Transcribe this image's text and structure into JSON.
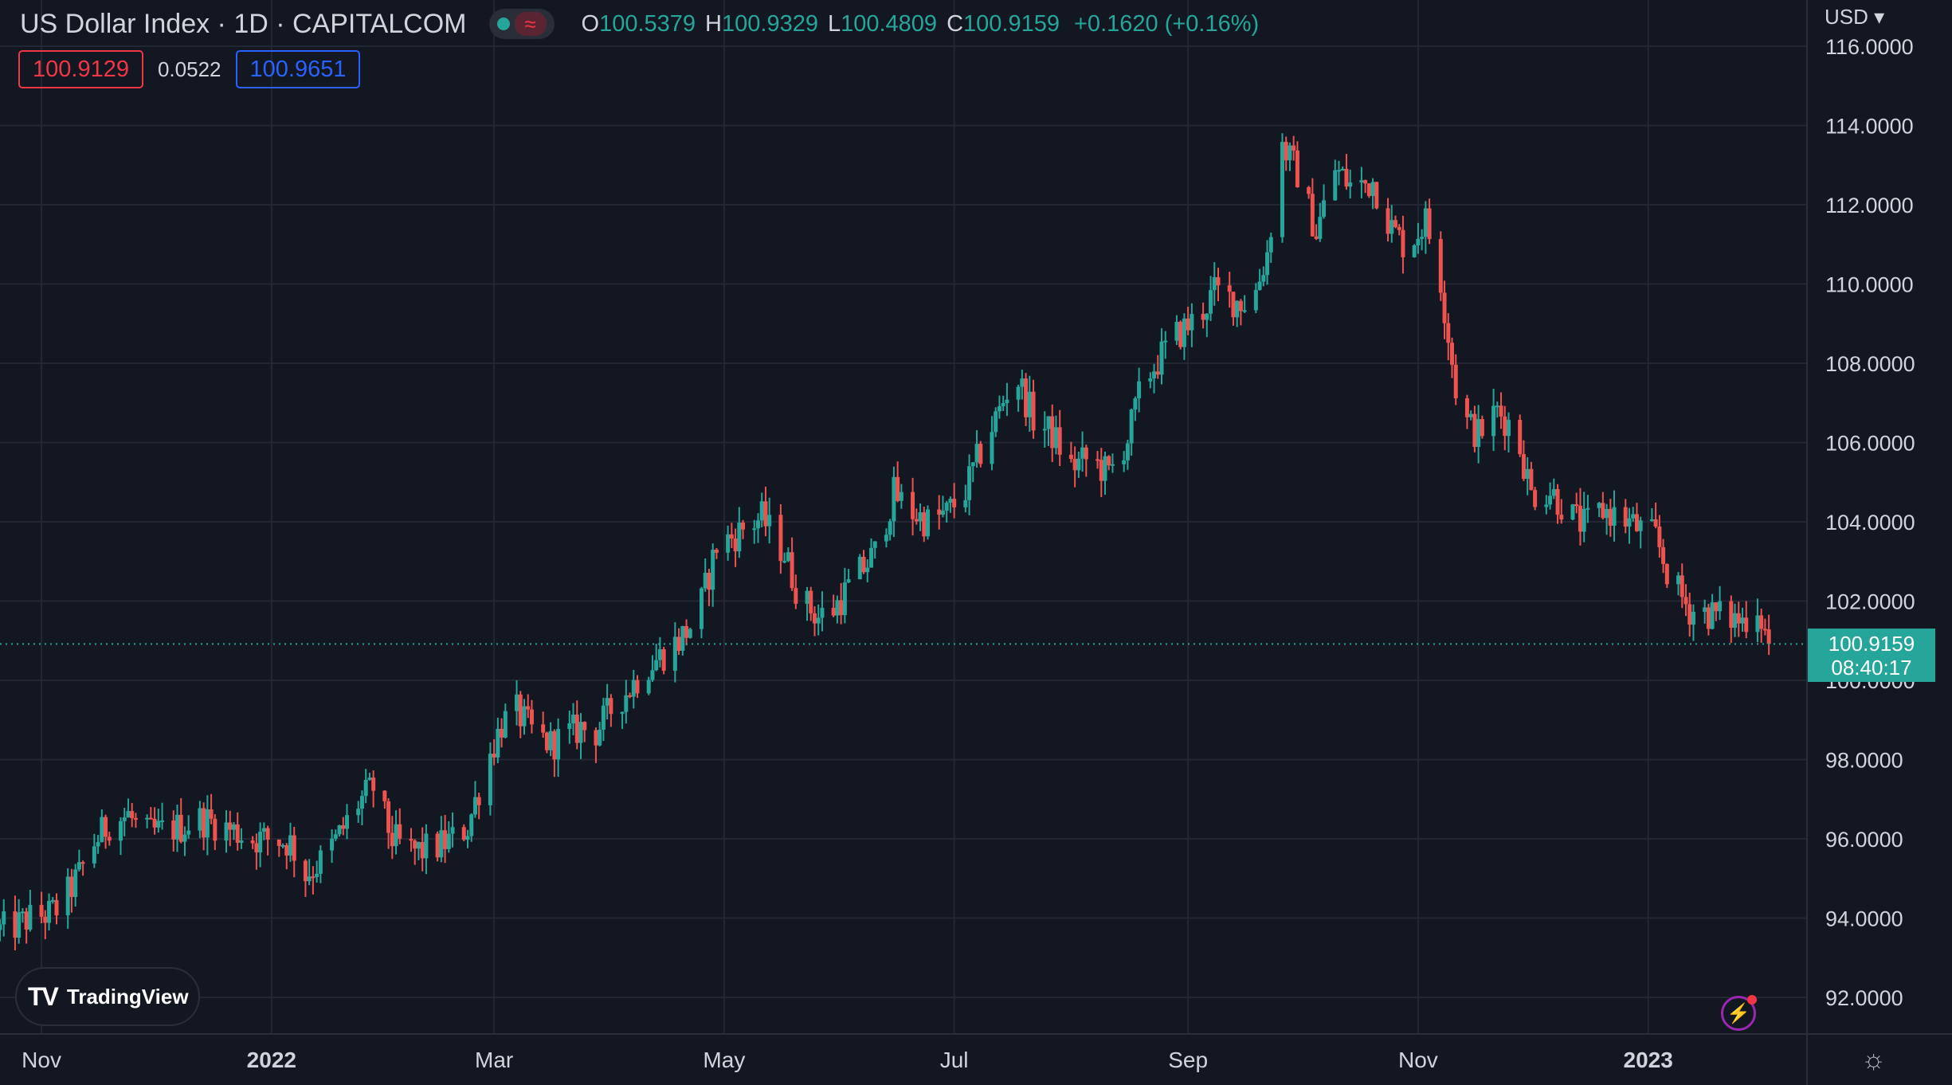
{
  "header": {
    "title": "US Dollar Index · 1D · CAPITALCOM",
    "ohlc": [
      {
        "label": "O",
        "value": "100.5379"
      },
      {
        "label": "H",
        "value": "100.9329"
      },
      {
        "label": "L",
        "value": "100.4809"
      },
      {
        "label": "C",
        "value": "100.9159"
      }
    ],
    "change": "+0.1620 (+0.16%)",
    "status_icons": [
      "market-open-dot-icon",
      "wave-icon"
    ]
  },
  "indicators": {
    "left": "100.9129",
    "middle": "0.0522",
    "right": "100.9651"
  },
  "currency_selector": "USD ▾",
  "branding": "TradingView",
  "current_price_tag": {
    "price": "100.9159",
    "countdown": "08:40:17"
  },
  "colors": {
    "background": "#131722",
    "up": "#26a69a",
    "down": "#ef5350",
    "grid": "#2a2e39",
    "text": "#d1d4dc"
  },
  "chart_data": {
    "type": "candlestick",
    "title": "US Dollar Index · 1D · CAPITALCOM",
    "ylim": [
      91.0,
      116.3
    ],
    "y_ticks": [
      "116.0000",
      "114.0000",
      "112.0000",
      "110.0000",
      "108.0000",
      "106.0000",
      "104.0000",
      "102.0000",
      "100.0000",
      "98.0000",
      "96.0000",
      "94.0000",
      "92.0000"
    ],
    "x_tick_labels": [
      "Nov",
      "2022",
      "Mar",
      "May",
      "Jul",
      "Sep",
      "Nov",
      "2023"
    ],
    "x_tick_dates": [
      "2021-11-01",
      "2022-01-01",
      "2022-03-01",
      "2022-05-01",
      "2022-07-01",
      "2022-09-01",
      "2022-11-01",
      "2023-01-01"
    ],
    "x_range": [
      "2021-10-21",
      "2023-02-10"
    ],
    "last_price": 100.9159,
    "grid": true,
    "close_series": {
      "dates": [
        "2021-10-21",
        "2021-10-25",
        "2021-10-29",
        "2021-11-03",
        "2021-11-06",
        "2021-11-11",
        "2021-11-15",
        "2021-11-19",
        "2021-11-24",
        "2021-11-28",
        "2021-12-03",
        "2021-12-08",
        "2021-12-13",
        "2021-12-17",
        "2021-12-22",
        "2021-12-27",
        "2022-01-01",
        "2022-01-06",
        "2022-01-10",
        "2022-01-15",
        "2022-01-19",
        "2022-01-24",
        "2022-01-28",
        "2022-02-02",
        "2022-02-06",
        "2022-02-10",
        "2022-02-14",
        "2022-02-18",
        "2022-02-22",
        "2022-02-27",
        "2022-03-03",
        "2022-03-07",
        "2022-03-12",
        "2022-03-16",
        "2022-03-20",
        "2022-03-24",
        "2022-03-28",
        "2022-04-02",
        "2022-04-06",
        "2022-04-10",
        "2022-04-14",
        "2022-04-19",
        "2022-04-24",
        "2022-04-29",
        "2022-05-03",
        "2022-05-07",
        "2022-05-11",
        "2022-05-17",
        "2022-05-21",
        "2022-05-26",
        "2022-05-30",
        "2022-06-05",
        "2022-06-10",
        "2022-06-15",
        "2022-06-19",
        "2022-06-24",
        "2022-06-29",
        "2022-07-04",
        "2022-07-09",
        "2022-07-13",
        "2022-07-17",
        "2022-07-22",
        "2022-07-27",
        "2022-08-01",
        "2022-08-06",
        "2022-08-11",
        "2022-08-16",
        "2022-08-20",
        "2022-08-25",
        "2022-08-29",
        "2022-09-04",
        "2022-09-08",
        "2022-09-13",
        "2022-09-18",
        "2022-09-22",
        "2022-09-26",
        "2022-09-30",
        "2022-10-05",
        "2022-10-10",
        "2022-10-15",
        "2022-10-20",
        "2022-10-25",
        "2022-10-29",
        "2022-11-03",
        "2022-11-07",
        "2022-11-12",
        "2022-11-17",
        "2022-11-22",
        "2022-11-27",
        "2022-12-01",
        "2022-12-06",
        "2022-12-11",
        "2022-12-15",
        "2022-12-20",
        "2022-12-25",
        "2022-12-30",
        "2023-01-03",
        "2023-01-07",
        "2023-01-12",
        "2023-01-17",
        "2023-01-21",
        "2023-01-26",
        "2023-01-30",
        "2023-02-02"
      ],
      "close": [
        93.7,
        93.8,
        94.0,
        94.1,
        94.3,
        95.1,
        95.9,
        96.4,
        96.6,
        96.1,
        96.2,
        96.3,
        96.5,
        96.4,
        96.2,
        96.0,
        96.0,
        95.9,
        95.1,
        95.5,
        96.1,
        96.9,
        97.3,
        96.0,
        95.7,
        95.7,
        95.8,
        96.0,
        96.3,
        97.9,
        98.9,
        99.2,
        98.6,
        98.4,
        98.6,
        98.8,
        98.7,
        99.4,
        99.8,
        100.3,
        100.6,
        101.0,
        101.6,
        103.4,
        103.6,
        103.9,
        104.1,
        103.2,
        102.1,
        101.6,
        101.8,
        102.6,
        103.2,
        104.7,
        104.3,
        104.0,
        104.2,
        104.8,
        106.0,
        106.8,
        107.8,
        106.6,
        106.2,
        105.4,
        105.6,
        105.2,
        106.1,
        107.5,
        108.2,
        108.7,
        109.2,
        109.8,
        109.6,
        109.5,
        110.8,
        113.5,
        112.8,
        111.3,
        112.9,
        112.4,
        112.6,
        111.4,
        110.9,
        111.6,
        110.1,
        106.7,
        106.2,
        106.8,
        106.3,
        104.7,
        104.8,
        104.2,
        103.9,
        104.3,
        104.1,
        103.8,
        103.6,
        102.5,
        101.8,
        101.7,
        101.6,
        101.5,
        101.9,
        100.9
      ]
    }
  }
}
